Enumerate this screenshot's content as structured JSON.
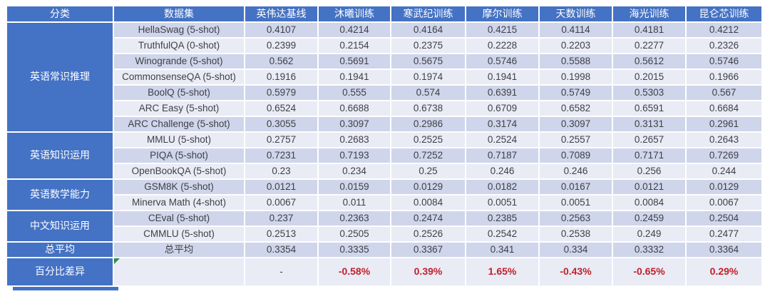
{
  "table": {
    "columns": [
      "分类",
      "数据集",
      "英伟达基线",
      "沐曦训练",
      "寒武纪训练",
      "摩尔训练",
      "天数训练",
      "海光训练",
      "昆仑芯训练"
    ],
    "groups": [
      {
        "category": "英语常识推理",
        "rows": [
          {
            "dataset": "HellaSwag (5-shot)",
            "values": [
              "0.4107",
              "0.4214",
              "0.4164",
              "0.4215",
              "0.4114",
              "0.4181",
              "0.4212"
            ]
          },
          {
            "dataset": "TruthfulQA (0-shot)",
            "values": [
              "0.2399",
              "0.2154",
              "0.2375",
              "0.2228",
              "0.2203",
              "0.2277",
              "0.2326"
            ]
          },
          {
            "dataset": "Winogrande (5-shot)",
            "values": [
              "0.562",
              "0.5691",
              "0.5675",
              "0.5746",
              "0.5588",
              "0.5612",
              "0.5746"
            ]
          },
          {
            "dataset": "CommonsenseQA (5-shot)",
            "values": [
              "0.1916",
              "0.1941",
              "0.1974",
              "0.1941",
              "0.1998",
              "0.2015",
              "0.1966"
            ]
          },
          {
            "dataset": "BoolQ (5-shot)",
            "values": [
              "0.5979",
              "0.555",
              "0.574",
              "0.6391",
              "0.5749",
              "0.5303",
              "0.567"
            ]
          },
          {
            "dataset": "ARC Easy (5-shot)",
            "values": [
              "0.6524",
              "0.6688",
              "0.6738",
              "0.6709",
              "0.6582",
              "0.6591",
              "0.6684"
            ]
          },
          {
            "dataset": "ARC Challenge (5-shot)",
            "values": [
              "0.3055",
              "0.3097",
              "0.2986",
              "0.3174",
              "0.3097",
              "0.3131",
              "0.2961"
            ]
          }
        ]
      },
      {
        "category": "英语知识运用",
        "rows": [
          {
            "dataset": "MMLU (5-shot)",
            "values": [
              "0.2757",
              "0.2683",
              "0.2525",
              "0.2524",
              "0.2557",
              "0.2657",
              "0.2643"
            ]
          },
          {
            "dataset": "PIQA (5-shot)",
            "values": [
              "0.7231",
              "0.7193",
              "0.7252",
              "0.7187",
              "0.7089",
              "0.7171",
              "0.7269"
            ]
          },
          {
            "dataset": "OpenBookQA (5-shot)",
            "values": [
              "0.23",
              "0.234",
              "0.25",
              "0.246",
              "0.246",
              "0.256",
              "0.244"
            ]
          }
        ]
      },
      {
        "category": "英语数学能力",
        "rows": [
          {
            "dataset": "GSM8K (5-shot)",
            "values": [
              "0.0121",
              "0.0159",
              "0.0129",
              "0.0182",
              "0.0167",
              "0.0121",
              "0.0129"
            ]
          },
          {
            "dataset": "Minerva Math (4-shot)",
            "values": [
              "0.0067",
              "0.011",
              "0.0084",
              "0.0051",
              "0.0051",
              "0.0084",
              "0.0067"
            ]
          }
        ]
      },
      {
        "category": "中文知识运用",
        "rows": [
          {
            "dataset": "CEval (5-shot)",
            "values": [
              "0.237",
              "0.2363",
              "0.2474",
              "0.2385",
              "0.2563",
              "0.2459",
              "0.2504"
            ]
          },
          {
            "dataset": "CMMLU (5-shot)",
            "values": [
              "0.2513",
              "0.2505",
              "0.2526",
              "0.2542",
              "0.2538",
              "0.249",
              "0.2477"
            ]
          }
        ]
      },
      {
        "category": "总平均",
        "rows": [
          {
            "dataset": "总平均",
            "values": [
              "0.3354",
              "0.3335",
              "0.3367",
              "0.341",
              "0.334",
              "0.3332",
              "0.3364"
            ]
          }
        ]
      },
      {
        "category": "百分比差异",
        "percent": true,
        "note_marker": true,
        "rows": [
          {
            "dataset": "",
            "values": [
              "-",
              "-0.58%",
              "0.39%",
              "1.65%",
              "-0.43%",
              "-0.65%",
              "0.29%"
            ]
          }
        ]
      }
    ]
  },
  "colors": {
    "header_blue": "#4472c4",
    "band_dark": "#cfd5ea",
    "band_light": "#e9ebf5",
    "percent_red": "#c0202a",
    "note_triangle_green": "#2e8b46",
    "cell_text": "#3f3f46"
  }
}
